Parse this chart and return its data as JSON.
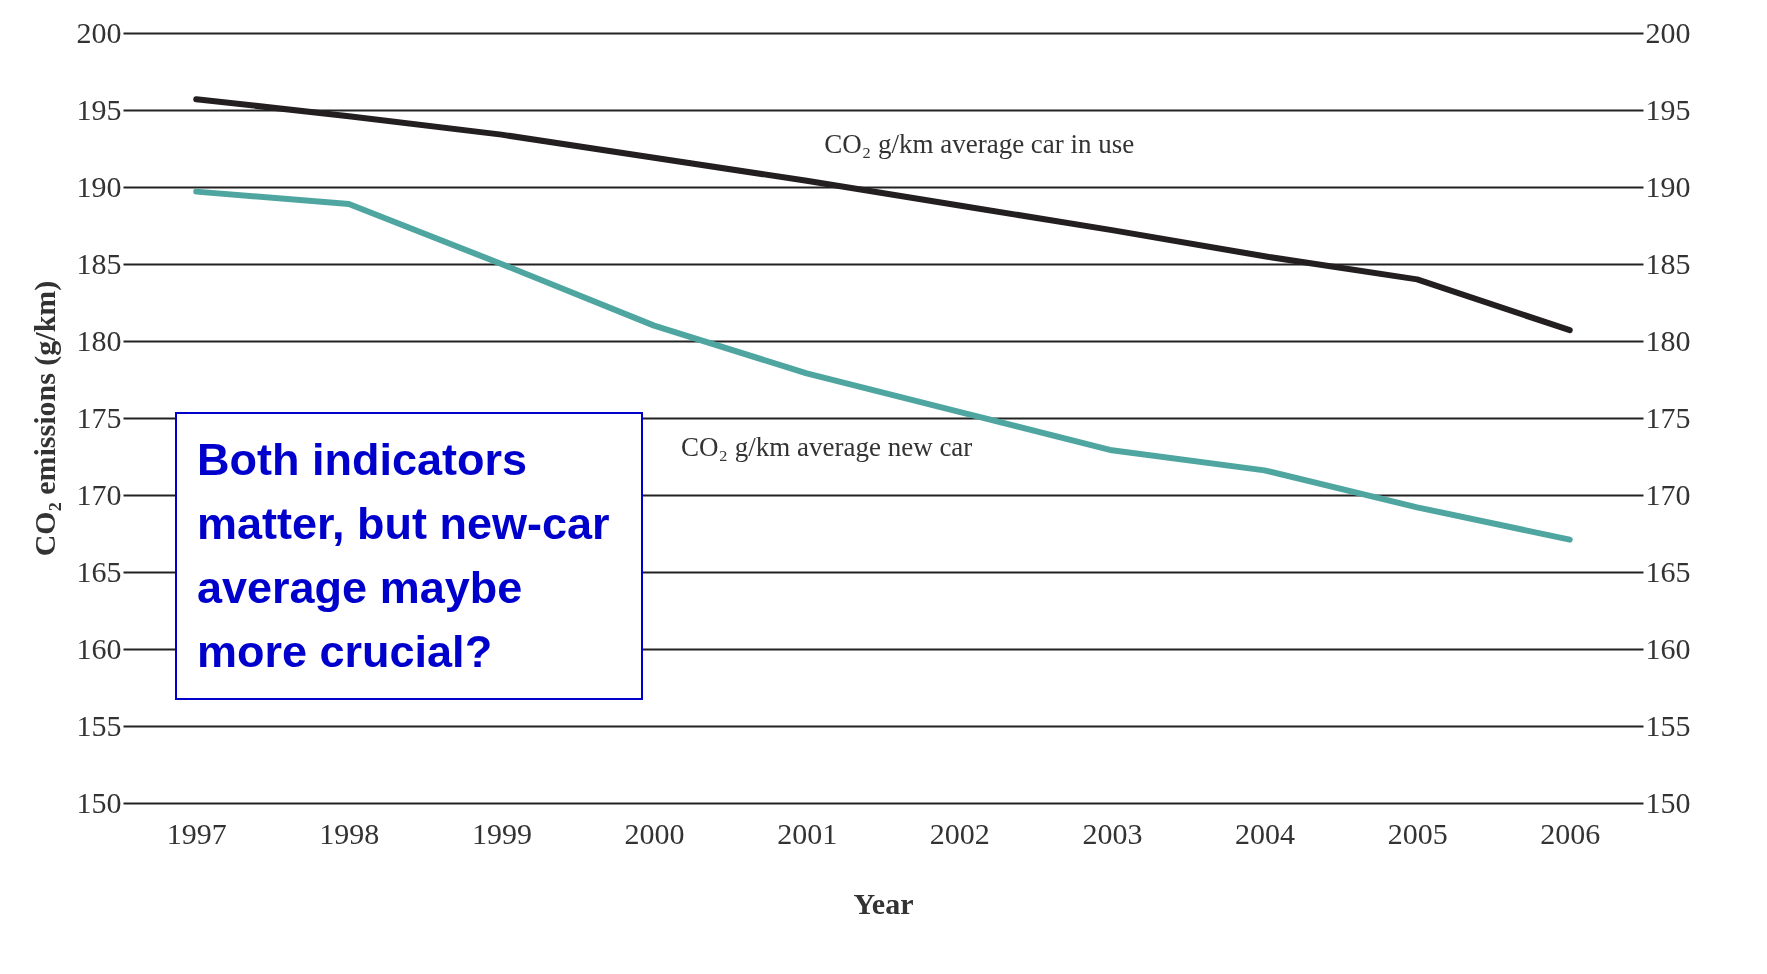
{
  "chart_data": {
    "type": "line",
    "xlabel": "Year",
    "ylabel": "CO₂ emissions (g/km)",
    "categories": [
      "1997",
      "1998",
      "1999",
      "2000",
      "2001",
      "2002",
      "2003",
      "2004",
      "2005",
      "2006"
    ],
    "series": [
      {
        "name": "CO₂ g/km average car in use",
        "color": "#231f20",
        "values": [
          195.7,
          194.6,
          193.4,
          191.9,
          190.4,
          188.8,
          187.2,
          185.5,
          184.0,
          180.7
        ]
      },
      {
        "name": "CO₂ g/km average new car",
        "color": "#4fa6a0",
        "values": [
          189.7,
          188.9,
          185.0,
          181.0,
          177.9,
          175.4,
          172.9,
          171.6,
          169.2,
          167.1
        ]
      }
    ],
    "ylim": [
      150,
      200
    ],
    "yticks": [
      150,
      155,
      160,
      165,
      170,
      175,
      180,
      185,
      190,
      195,
      200
    ],
    "y2lim": [
      150,
      200
    ],
    "y2ticks": [
      150,
      155,
      160,
      165,
      170,
      175,
      180,
      185,
      190,
      195,
      200
    ],
    "grid": "y",
    "legend": false,
    "marker": "none",
    "line_style": "solid",
    "annotations": [
      "Both indicators matter, but new-car average maybe more crucial?"
    ]
  }
}
